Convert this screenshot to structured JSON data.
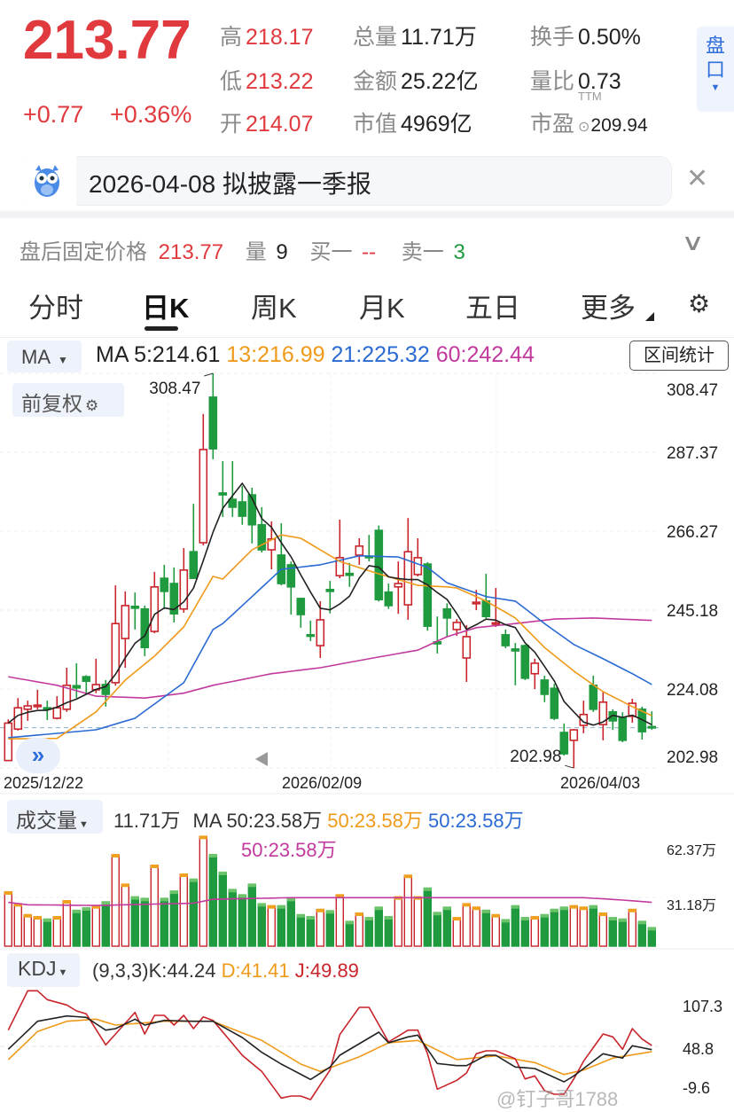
{
  "quote": {
    "price": "213.77",
    "change": "+0.77",
    "change_pct": "+0.36%",
    "stats": [
      {
        "label": "高",
        "value": "218.17",
        "color": "red"
      },
      {
        "label": "低",
        "value": "213.22",
        "color": "red"
      },
      {
        "label": "开",
        "value": "214.07",
        "color": "red"
      },
      {
        "label": "总量",
        "value": "11.71万",
        "color": "dark"
      },
      {
        "label": "金额",
        "value": "25.22亿",
        "color": "dark"
      },
      {
        "label": "市值",
        "value": "4969亿",
        "color": "dark"
      },
      {
        "label": "换手",
        "value": "0.50%",
        "color": "dark"
      },
      {
        "label": "量比",
        "value": "0.73",
        "color": "dark"
      },
      {
        "label": "市盈",
        "value": "209.94",
        "color": "dark",
        "sup": "TTM"
      }
    ],
    "pankou_label": "盘口"
  },
  "notice": {
    "text": "2026-04-08 拟披露一季报",
    "icon": "owl-mascot-icon"
  },
  "after_hours": {
    "label": "盘后固定价格",
    "price": "213.77",
    "vol_label": "量",
    "vol": "9",
    "bid_label": "买一",
    "bid": "--",
    "ask_label": "卖一",
    "ask": "3"
  },
  "tabs": [
    {
      "label": "分时"
    },
    {
      "label": "日K",
      "active": true
    },
    {
      "label": "周K"
    },
    {
      "label": "月K"
    },
    {
      "label": "五日"
    },
    {
      "label": "更多"
    }
  ],
  "ma_header": {
    "selector": "MA",
    "ma5": "MA 5:214.61",
    "ma13": "13:216.99",
    "ma21": "21:225.32",
    "ma60": "60:242.44",
    "range_stats": "区间统计",
    "adjust": "前复权"
  },
  "colors": {
    "up": "#c8242b",
    "down": "#1f9a3e",
    "ma5": "#222222",
    "ma13": "#ef9a1a",
    "ma21": "#2a6ad2",
    "ma60": "#c23a9e",
    "kdj_k": "#222222",
    "kdj_d": "#ef9a1a",
    "kdj_j": "#c8242b"
  },
  "chart_data": [
    {
      "type": "candlestick",
      "name": "日K",
      "ylim": [
        202.98,
        308.47
      ],
      "y_ticks": [
        "308.47",
        "287.37",
        "266.27",
        "245.18",
        "224.08",
        "202.98"
      ],
      "x_labels": [
        {
          "index": 1,
          "text": "2025/12/22"
        },
        {
          "index": 34,
          "text": "2026/02/09"
        },
        {
          "index": 62,
          "text": "2026/04/03"
        }
      ],
      "high_label": {
        "index": 22,
        "text": "308.47"
      },
      "low_label": {
        "index": 59,
        "text": "202.98"
      },
      "last_price": 213.77,
      "ohlc": [
        [
          205,
          216,
          204.9,
          215
        ],
        [
          213.4,
          221.7,
          213,
          219.1
        ],
        [
          218.7,
          221,
          215.6,
          219.6
        ],
        [
          219.4,
          223.9,
          218.7,
          219.8
        ],
        [
          219.1,
          221,
          215.8,
          218.7
        ],
        [
          216.3,
          222.2,
          216,
          219.1
        ],
        [
          218.7,
          229.8,
          218,
          225.1
        ],
        [
          225,
          231,
          221.7,
          224.4
        ],
        [
          227.4,
          227.8,
          222.7,
          226.2
        ],
        [
          223.9,
          232.2,
          223,
          225.3
        ],
        [
          225.3,
          226.5,
          219.4,
          222.7
        ],
        [
          225.8,
          251.8,
          225,
          241.6
        ],
        [
          237.6,
          250.2,
          229.8,
          246.4
        ],
        [
          246.2,
          249.9,
          240,
          245.7
        ],
        [
          245.5,
          246.4,
          232.9,
          235.2
        ],
        [
          239.5,
          255.4,
          239,
          251.4
        ],
        [
          253.7,
          257.3,
          245.5,
          250.2
        ],
        [
          252.3,
          256.6,
          241.9,
          244.2
        ],
        [
          245.5,
          261.8,
          244.5,
          255.9
        ],
        [
          260.8,
          273.6,
          253.5,
          253.7
        ],
        [
          263.2,
          297.6,
          262.5,
          288.1
        ],
        [
          302.1,
          308.47,
          285.5,
          288.3
        ],
        [
          276.5,
          285,
          270.1,
          276
        ],
        [
          274.8,
          285,
          270.1,
          272.7
        ],
        [
          274.1,
          278.4,
          268,
          270.3
        ],
        [
          276,
          277.9,
          263,
          268
        ],
        [
          268,
          272.7,
          260.6,
          261.3
        ],
        [
          261.3,
          268.9,
          256.1,
          264.2
        ],
        [
          259.9,
          268.4,
          251.8,
          252.3
        ],
        [
          257.3,
          258.2,
          244,
          251.4
        ],
        [
          248.3,
          248.5,
          240.5,
          244
        ],
        [
          238.6,
          242.4,
          236.9,
          238.2
        ],
        [
          235.7,
          247.6,
          232.4,
          242.6
        ],
        [
          250.7,
          253,
          244.3,
          250.2
        ],
        [
          254.4,
          269.4,
          253.7,
          259.2
        ],
        [
          255,
          257.8,
          251.4,
          254.5
        ],
        [
          259.9,
          264.4,
          257.3,
          262.3
        ],
        [
          259.6,
          265.3,
          258.2,
          259.2
        ],
        [
          266.5,
          267.8,
          247.5,
          248
        ],
        [
          250,
          252.3,
          245.5,
          246.4
        ],
        [
          251.4,
          258.2,
          244.2,
          252.3
        ],
        [
          246.6,
          269.8,
          242.6,
          260.8
        ],
        [
          254.7,
          264.4,
          254.2,
          259.2
        ],
        [
          257.5,
          258,
          239.7,
          240.9
        ],
        [
          236.7,
          243.5,
          233.6,
          236.2
        ],
        [
          245.5,
          247,
          238.1,
          243.1
        ],
        [
          240,
          242.8,
          238.3,
          241.9
        ],
        [
          232.4,
          241.2,
          226,
          238.1
        ],
        [
          246.9,
          250.6,
          245.2,
          247.3
        ],
        [
          247.6,
          254.9,
          243,
          243.5
        ],
        [
          241.4,
          251.1,
          240.7,
          241.8
        ],
        [
          238.6,
          240,
          235,
          235.7
        ],
        [
          234.8,
          236.4,
          225.1,
          234.3
        ],
        [
          235.7,
          236,
          226.5,
          227
        ],
        [
          228.2,
          232.2,
          224.1,
          231
        ],
        [
          226.5,
          227.7,
          220.6,
          222.7
        ],
        [
          224.3,
          225.5,
          215.8,
          216.3
        ],
        [
          212.5,
          214.9,
          206.3,
          206.8
        ],
        [
          210.4,
          213.4,
          202.98,
          213.2
        ],
        [
          214.4,
          221,
          212.3,
          217.3
        ],
        [
          225.1,
          227.7,
          218,
          218.7
        ],
        [
          214.6,
          223.4,
          210.4,
          220.6
        ],
        [
          218,
          218.7,
          213.2,
          215.6
        ],
        [
          216.5,
          217.9,
          209.9,
          210.4
        ],
        [
          216.8,
          221.5,
          215.1,
          220.3
        ],
        [
          218.7,
          219.4,
          210.6,
          212.7
        ],
        [
          214.07,
          218.17,
          213.22,
          213.77
        ]
      ],
      "ma13": [
        [
          1,
          210.8
        ],
        [
          6,
          210.9
        ],
        [
          10,
          218
        ],
        [
          13,
          226.5
        ],
        [
          16,
          232.9
        ],
        [
          19,
          240.7
        ],
        [
          22,
          254.2
        ],
        [
          23,
          253.5
        ],
        [
          26,
          261.3
        ],
        [
          29,
          265.3
        ],
        [
          31,
          264.4
        ],
        [
          33,
          261.3
        ],
        [
          35,
          258.2
        ],
        [
          39,
          254.9
        ],
        [
          43,
          251.8
        ],
        [
          46,
          251.4
        ],
        [
          47,
          251.1
        ],
        [
          50,
          247.6
        ],
        [
          53,
          243.1
        ],
        [
          56,
          235.2
        ],
        [
          59,
          228.9
        ],
        [
          62,
          223.4
        ],
        [
          65,
          219.4
        ],
        [
          67,
          216.99
        ]
      ],
      "ma21": [
        [
          1,
          211.1
        ],
        [
          10,
          213.2
        ],
        [
          14,
          216.3
        ],
        [
          19,
          225.8
        ],
        [
          22,
          240
        ],
        [
          23,
          241.6
        ],
        [
          26,
          248.8
        ],
        [
          29,
          256.1
        ],
        [
          33,
          257.3
        ],
        [
          37,
          259.7
        ],
        [
          41,
          259.4
        ],
        [
          44,
          256.6
        ],
        [
          46,
          252.5
        ],
        [
          50,
          248.8
        ],
        [
          53,
          247.6
        ],
        [
          56,
          241.6
        ],
        [
          59,
          236
        ],
        [
          62,
          232.2
        ],
        [
          65,
          228.2
        ],
        [
          67,
          225.32
        ]
      ],
      "ma60": [
        [
          1,
          227.4
        ],
        [
          6,
          225.1
        ],
        [
          10,
          222.2
        ],
        [
          15,
          221.7
        ],
        [
          19,
          223
        ],
        [
          22,
          225.1
        ],
        [
          28,
          228.2
        ],
        [
          33,
          229.8
        ],
        [
          38,
          232.2
        ],
        [
          43,
          234.5
        ],
        [
          46,
          238.1
        ],
        [
          49,
          240.5
        ],
        [
          53,
          241.6
        ],
        [
          57,
          242.8
        ],
        [
          61,
          243.1
        ],
        [
          67,
          242.44
        ]
      ]
    },
    {
      "type": "bar",
      "name": "成交量",
      "unit": "万",
      "header": {
        "selector": "成交量",
        "volume": "11.71万",
        "ma_a": "MA 50:23.58万",
        "ma_b": "50:23.58万",
        "ma_c": "50:23.58万",
        "ma_d": "50:23.58万"
      },
      "y_ticks": [
        "62.37万",
        "31.18万"
      ],
      "values": [
        34.6,
        27,
        20,
        18.7,
        17.2,
        18.7,
        28.9,
        22.8,
        24.4,
        25.7,
        28.2,
        58.4,
        39.5,
        31.4,
        30.4,
        51.6,
        30.4,
        35.1,
        45.9,
        42.7,
        70.1,
        58.4,
        47.1,
        36.1,
        32.7,
        39.5,
        27,
        25.7,
        25.7,
        30.4,
        20,
        18.7,
        23.4,
        22.5,
        32.7,
        15.7,
        21,
        18.1,
        24.8,
        18.7,
        31.4,
        45.2,
        31.4,
        37,
        21.4,
        24.8,
        18.1,
        27,
        24.8,
        22.8,
        20,
        16.8,
        25.7,
        18.1,
        18.7,
        20,
        23.4,
        24.8,
        25.7,
        24.8,
        25.7,
        21,
        18.1,
        17.2,
        23.4,
        15.7,
        11.71
      ],
      "ma_line": [
        [
          1,
          28
        ],
        [
          3,
          26.5
        ],
        [
          10,
          26
        ],
        [
          20,
          27.5
        ],
        [
          22,
          30
        ],
        [
          30,
          31
        ],
        [
          40,
          31
        ],
        [
          60,
          31
        ],
        [
          64,
          29.5
        ],
        [
          67,
          28
        ]
      ]
    },
    {
      "type": "line",
      "name": "KDJ",
      "header": {
        "selector": "KDJ",
        "params": "(9,3,3)K:44.24",
        "d": "D:41.41",
        "j": "J:49.89"
      },
      "y_ticks": [
        "107.3",
        "48.8",
        "-9.6"
      ],
      "k": [
        [
          1,
          44.7
        ],
        [
          4,
          84
        ],
        [
          7,
          91.5
        ],
        [
          9,
          89.5
        ],
        [
          11,
          71.6
        ],
        [
          12,
          73.7
        ],
        [
          14,
          87
        ],
        [
          15,
          78.7
        ],
        [
          17,
          85.3
        ],
        [
          20,
          84
        ],
        [
          22,
          84
        ],
        [
          25,
          61.3
        ],
        [
          27,
          40.5
        ],
        [
          29,
          23.9
        ],
        [
          32,
          2.4
        ],
        [
          34,
          19.8
        ],
        [
          35,
          36.3
        ],
        [
          39,
          68.7
        ],
        [
          40,
          53.8
        ],
        [
          42,
          62.1
        ],
        [
          43,
          64.6
        ],
        [
          45,
          24.8
        ],
        [
          47,
          21.8
        ],
        [
          48,
          21.8
        ],
        [
          50,
          36.3
        ],
        [
          51,
          36.3
        ],
        [
          53,
          19.8
        ],
        [
          55,
          17.7
        ],
        [
          58,
          -1
        ],
        [
          59,
          7.3
        ],
        [
          62,
          38.5
        ],
        [
          64,
          32.3
        ],
        [
          65,
          49.7
        ],
        [
          67,
          44.24
        ]
      ],
      "d": [
        [
          1,
          30.1
        ],
        [
          4,
          69.6
        ],
        [
          7,
          84
        ],
        [
          10,
          87
        ],
        [
          12,
          78.7
        ],
        [
          17,
          84
        ],
        [
          22,
          84
        ],
        [
          27,
          57.1
        ],
        [
          31,
          23.9
        ],
        [
          33,
          13.6
        ],
        [
          37,
          34.2
        ],
        [
          40,
          53.8
        ],
        [
          43,
          57.1
        ],
        [
          47,
          30.1
        ],
        [
          51,
          35.5
        ],
        [
          55,
          26
        ],
        [
          58,
          9.3
        ],
        [
          60,
          15.6
        ],
        [
          63,
          32.3
        ],
        [
          67,
          41.41
        ]
      ],
      "j": [
        [
          1,
          71.6
        ],
        [
          3,
          126.9
        ],
        [
          4,
          126.9
        ],
        [
          5,
          114.4
        ],
        [
          7,
          107
        ],
        [
          8,
          98.6
        ],
        [
          9,
          94.5
        ],
        [
          11,
          50.9
        ],
        [
          14,
          96.5
        ],
        [
          15,
          66.2
        ],
        [
          16,
          92.4
        ],
        [
          17,
          92.4
        ],
        [
          18,
          78.7
        ],
        [
          19,
          92.4
        ],
        [
          20,
          73.7
        ],
        [
          21,
          90.3
        ],
        [
          22,
          85.3
        ],
        [
          25,
          36.3
        ],
        [
          27,
          13.6
        ],
        [
          29,
          -23.8
        ],
        [
          30,
          -20.9
        ],
        [
          31,
          -20.9
        ],
        [
          32,
          -25.9
        ],
        [
          34,
          15.6
        ],
        [
          35,
          65.4
        ],
        [
          37,
          103.6
        ],
        [
          38,
          103.6
        ],
        [
          40,
          55
        ],
        [
          42,
          71.6
        ],
        [
          43,
          71.6
        ],
        [
          44,
          38.5
        ],
        [
          45,
          -11.3
        ],
        [
          47,
          1.1
        ],
        [
          48,
          11.4
        ],
        [
          49,
          38.5
        ],
        [
          50,
          42.6
        ],
        [
          51,
          42.6
        ],
        [
          53,
          31.4
        ],
        [
          54,
          3.1
        ],
        [
          55,
          7.3
        ],
        [
          56,
          -13.5
        ],
        [
          57,
          -18.4
        ],
        [
          58,
          -18.4
        ],
        [
          59,
          3.1
        ],
        [
          60,
          28
        ],
        [
          62,
          66.2
        ],
        [
          63,
          62.1
        ],
        [
          64,
          44.7
        ],
        [
          65,
          73.7
        ],
        [
          66,
          59.1
        ],
        [
          67,
          49.89
        ]
      ]
    }
  ],
  "watermark": "@钉子哥1788"
}
